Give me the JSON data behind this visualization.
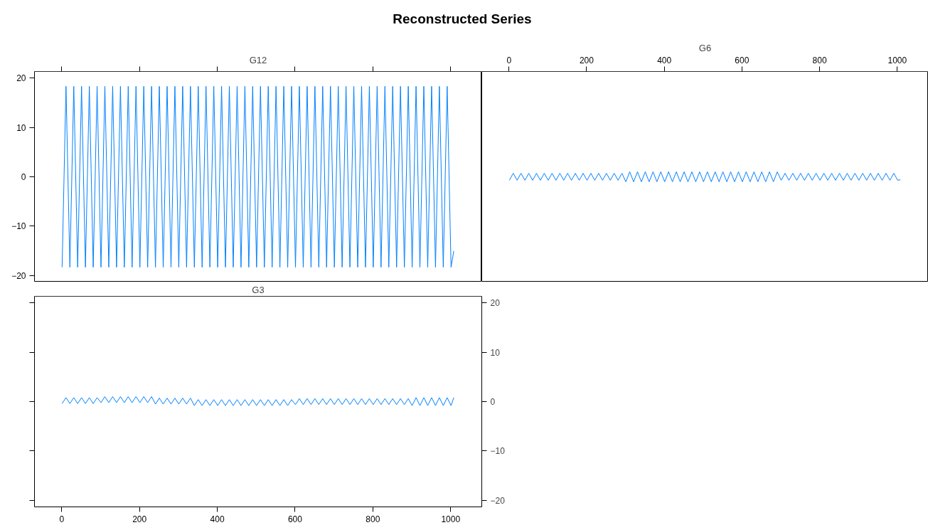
{
  "chart_data": [
    {
      "type": "line",
      "title": "Reconstructed Series",
      "subtitle": "G12",
      "xlim": [
        -70,
        1080
      ],
      "xticks": [
        0,
        200,
        400,
        600,
        800,
        1000
      ],
      "ylim": [
        -21.3,
        21.3
      ],
      "yticks": [
        -20,
        -10,
        0,
        10,
        20
      ],
      "grid": false,
      "marker": "none",
      "line_style": "solid",
      "tick_labels": "y",
      "series": [
        {
          "color": "#0080ff",
          "x": [
            1,
            11,
            21,
            31,
            41,
            51,
            61,
            71,
            81,
            91,
            101,
            111,
            121,
            131,
            141,
            151,
            161,
            171,
            181,
            191,
            201,
            211,
            221,
            231,
            241,
            251,
            261,
            271,
            281,
            291,
            301,
            311,
            321,
            331,
            341,
            351,
            361,
            371,
            381,
            391,
            401,
            411,
            421,
            431,
            441,
            451,
            461,
            471,
            481,
            491,
            501,
            511,
            521,
            531,
            541,
            551,
            561,
            571,
            581,
            591,
            601,
            611,
            621,
            631,
            641,
            651,
            661,
            671,
            681,
            691,
            701,
            711,
            721,
            731,
            741,
            751,
            761,
            771,
            781,
            791,
            801,
            811,
            821,
            831,
            841,
            851,
            861,
            871,
            881,
            891,
            901,
            911,
            921,
            931,
            941,
            951,
            961,
            971,
            981,
            991,
            1001,
            1008
          ],
          "values": [
            -18.3,
            18.3,
            -18.3,
            18.3,
            -18.3,
            18.3,
            -18.3,
            18.3,
            -18.3,
            18.3,
            -18.3,
            18.3,
            -18.3,
            18.3,
            -18.3,
            18.3,
            -18.3,
            18.3,
            -18.3,
            18.3,
            -18.3,
            18.3,
            -18.3,
            18.3,
            -18.3,
            18.3,
            -18.3,
            18.3,
            -18.3,
            18.3,
            -18.3,
            18.3,
            -18.3,
            18.3,
            -18.3,
            18.3,
            -18.3,
            18.3,
            -18.3,
            18.3,
            -18.3,
            18.3,
            -18.3,
            18.3,
            -18.3,
            18.3,
            -18.3,
            18.3,
            -18.3,
            18.3,
            -18.3,
            18.3,
            -18.3,
            18.3,
            -18.3,
            18.3,
            -18.3,
            18.3,
            -18.3,
            18.3,
            -18.3,
            18.3,
            -18.3,
            18.3,
            -18.3,
            18.3,
            -18.3,
            18.3,
            -18.3,
            18.3,
            -18.3,
            18.3,
            -18.3,
            18.3,
            -18.3,
            18.3,
            -18.3,
            18.3,
            -18.3,
            18.3,
            -18.3,
            18.3,
            -18.3,
            18.3,
            -18.3,
            18.3,
            -18.3,
            18.3,
            -18.3,
            18.3,
            -18.3,
            18.3,
            -18.3,
            18.3,
            -18.3,
            18.3,
            -18.3,
            18.3,
            -18.3,
            18.3,
            -18.3,
            -15
          ]
        }
      ]
    },
    {
      "type": "line",
      "subtitle": "G6",
      "xlim": [
        -70,
        1080
      ],
      "xticks": [
        0,
        200,
        400,
        600,
        800,
        1000
      ],
      "ylim": [
        -21.3,
        21.3
      ],
      "grid": false,
      "marker": "none",
      "line_style": "solid",
      "tick_labels": "x",
      "series": [
        {
          "color": "#0080ff",
          "x": [
            1,
            11,
            21,
            31,
            41,
            51,
            61,
            71,
            81,
            91,
            101,
            111,
            121,
            131,
            141,
            151,
            161,
            171,
            181,
            191,
            201,
            211,
            221,
            231,
            241,
            251,
            261,
            271,
            281,
            291,
            301,
            311,
            321,
            331,
            341,
            351,
            361,
            371,
            381,
            391,
            401,
            411,
            421,
            431,
            441,
            451,
            461,
            471,
            481,
            491,
            501,
            511,
            521,
            531,
            541,
            551,
            561,
            571,
            581,
            591,
            601,
            611,
            621,
            631,
            641,
            651,
            661,
            671,
            681,
            691,
            701,
            711,
            721,
            731,
            741,
            751,
            761,
            771,
            781,
            791,
            801,
            811,
            821,
            831,
            841,
            851,
            861,
            871,
            881,
            891,
            901,
            911,
            921,
            931,
            941,
            951,
            961,
            971,
            981,
            991,
            1001,
            1008
          ],
          "values": [
            -0.7,
            0.7,
            -0.7,
            0.7,
            -0.7,
            0.7,
            -0.7,
            0.7,
            -0.7,
            0.7,
            -0.7,
            0.7,
            -0.7,
            0.7,
            -0.7,
            0.7,
            -0.7,
            0.7,
            -0.7,
            0.7,
            -0.7,
            0.7,
            -0.7,
            0.7,
            -0.7,
            0.7,
            -0.7,
            0.7,
            -0.7,
            0.7,
            -1,
            1,
            -1,
            1,
            -1,
            1,
            -1,
            1,
            -1,
            1,
            -1,
            1,
            -1,
            1,
            -1,
            1,
            -1,
            1,
            -1,
            1,
            -1,
            1,
            -1,
            1,
            -1,
            1,
            -1,
            1,
            -1,
            1,
            -1,
            1,
            -1,
            1,
            -1,
            1,
            -1,
            1,
            -1,
            1,
            -0.7,
            0.7,
            -0.7,
            0.7,
            -0.7,
            0.7,
            -0.7,
            0.7,
            -0.7,
            0.7,
            -0.7,
            0.7,
            -0.7,
            0.7,
            -0.7,
            0.7,
            -0.7,
            0.7,
            -0.7,
            0.7,
            -0.7,
            0.7,
            -0.7,
            0.7,
            -0.7,
            0.7,
            -0.7,
            0.7,
            -0.7,
            0.7,
            -0.7,
            -0.6
          ]
        }
      ]
    },
    {
      "type": "line",
      "subtitle": "G3",
      "xlim": [
        -70,
        1080
      ],
      "xticks": [
        0,
        200,
        400,
        600,
        800,
        1000
      ],
      "ylim": [
        -21.3,
        21.3
      ],
      "yticks": [
        -20,
        -10,
        0,
        10,
        20
      ],
      "grid": false,
      "marker": "none",
      "line_style": "solid",
      "series": [
        {
          "color": "#0080ff",
          "x": [
            1,
            11,
            21,
            31,
            41,
            51,
            61,
            71,
            81,
            91,
            101,
            111,
            121,
            131,
            141,
            151,
            161,
            171,
            181,
            191,
            201,
            211,
            221,
            231,
            241,
            251,
            261,
            271,
            281,
            291,
            301,
            311,
            321,
            331,
            341,
            351,
            361,
            371,
            381,
            391,
            401,
            411,
            421,
            431,
            441,
            451,
            461,
            471,
            481,
            491,
            501,
            511,
            521,
            531,
            541,
            551,
            561,
            571,
            581,
            591,
            601,
            611,
            621,
            631,
            641,
            651,
            661,
            671,
            681,
            691,
            701,
            711,
            721,
            731,
            741,
            751,
            761,
            771,
            781,
            791,
            801,
            811,
            821,
            831,
            841,
            851,
            861,
            871,
            881,
            891,
            901,
            911,
            921,
            931,
            941,
            951,
            961,
            971,
            981,
            991,
            1001,
            1008
          ],
          "values": [
            -0.4,
            0.8,
            -0.4,
            0.8,
            -0.4,
            0.8,
            -0.4,
            0.8,
            -0.4,
            0.8,
            -0.2,
            1,
            -0.2,
            1,
            -0.2,
            1,
            -0.2,
            1,
            -0.2,
            1,
            -0.2,
            1,
            -0.2,
            1,
            -0.5,
            0.7,
            -0.5,
            0.7,
            -0.5,
            0.7,
            -0.5,
            0.7,
            -0.5,
            0.7,
            -0.8,
            0.4,
            -0.8,
            0.4,
            -0.8,
            0.4,
            -0.8,
            0.4,
            -0.8,
            0.4,
            -0.8,
            0.4,
            -0.8,
            0.4,
            -0.8,
            0.4,
            -0.8,
            0.4,
            -0.8,
            0.4,
            -0.8,
            0.4,
            -0.8,
            0.4,
            -0.8,
            0.4,
            -0.6,
            0.6,
            -0.6,
            0.6,
            -0.6,
            0.6,
            -0.6,
            0.6,
            -0.6,
            0.6,
            -0.6,
            0.6,
            -0.6,
            0.6,
            -0.6,
            0.6,
            -0.6,
            0.6,
            -0.6,
            0.6,
            -0.6,
            0.6,
            -0.6,
            0.6,
            -0.6,
            0.6,
            -0.6,
            0.6,
            -0.6,
            0.6,
            -0.8,
            0.8,
            -0.8,
            0.8,
            -0.8,
            0.8,
            -0.8,
            0.8,
            -0.8,
            0.8,
            -0.8,
            0.8
          ]
        }
      ]
    }
  ]
}
